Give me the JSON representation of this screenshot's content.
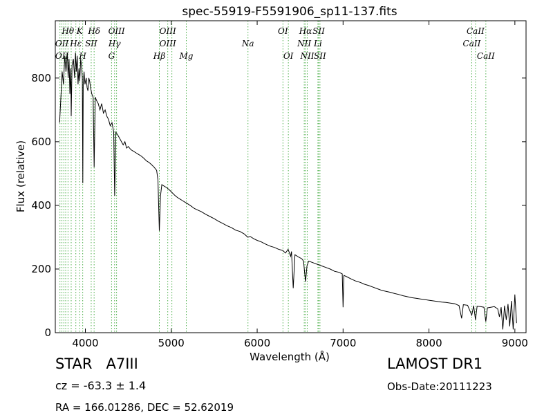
{
  "chart_data": {
    "type": "line",
    "title": "spec-55919-F5591906_sp11-137.fits",
    "xlabel": "Wavelength (Å)",
    "ylabel": "Flux (relative)",
    "xlim": [
      3650,
      9130
    ],
    "ylim": [
      0,
      980
    ],
    "x_ticks": [
      4000,
      5000,
      6000,
      7000,
      8000,
      9000
    ],
    "y_ticks": [
      0,
      200,
      400,
      600,
      800
    ],
    "grid": false,
    "series": [
      {
        "color": "#000000",
        "points": [
          [
            3700,
            660
          ],
          [
            3715,
            740
          ],
          [
            3730,
            820
          ],
          [
            3745,
            780
          ],
          [
            3760,
            870
          ],
          [
            3775,
            820
          ],
          [
            3790,
            880
          ],
          [
            3800,
            800
          ],
          [
            3810,
            860
          ],
          [
            3820,
            750
          ],
          [
            3830,
            830
          ],
          [
            3835,
            680
          ],
          [
            3845,
            840
          ],
          [
            3860,
            860
          ],
          [
            3875,
            800
          ],
          [
            3885,
            880
          ],
          [
            3895,
            820
          ],
          [
            3905,
            870
          ],
          [
            3915,
            780
          ],
          [
            3925,
            830
          ],
          [
            3935,
            790
          ],
          [
            3945,
            860
          ],
          [
            3955,
            840
          ],
          [
            3965,
            800
          ],
          [
            3970,
            470
          ],
          [
            3975,
            780
          ],
          [
            3985,
            820
          ],
          [
            3995,
            780
          ],
          [
            4010,
            800
          ],
          [
            4020,
            770
          ],
          [
            4030,
            760
          ],
          [
            4040,
            800
          ],
          [
            4050,
            790
          ],
          [
            4060,
            770
          ],
          [
            4075,
            750
          ],
          [
            4090,
            740
          ],
          [
            4102,
            520
          ],
          [
            4115,
            740
          ],
          [
            4130,
            730
          ],
          [
            4150,
            720
          ],
          [
            4170,
            700
          ],
          [
            4190,
            720
          ],
          [
            4210,
            690
          ],
          [
            4230,
            700
          ],
          [
            4250,
            680
          ],
          [
            4270,
            670
          ],
          [
            4290,
            650
          ],
          [
            4310,
            660
          ],
          [
            4330,
            630
          ],
          [
            4341,
            430
          ],
          [
            4355,
            630
          ],
          [
            4380,
            620
          ],
          [
            4400,
            610
          ],
          [
            4420,
            600
          ],
          [
            4440,
            590
          ],
          [
            4460,
            600
          ],
          [
            4480,
            580
          ],
          [
            4500,
            585
          ],
          [
            4530,
            575
          ],
          [
            4560,
            570
          ],
          [
            4590,
            565
          ],
          [
            4620,
            560
          ],
          [
            4650,
            555
          ],
          [
            4680,
            548
          ],
          [
            4710,
            540
          ],
          [
            4740,
            535
          ],
          [
            4770,
            528
          ],
          [
            4800,
            520
          ],
          [
            4830,
            510
          ],
          [
            4845,
            480
          ],
          [
            4861,
            320
          ],
          [
            4875,
            430
          ],
          [
            4890,
            465
          ],
          [
            4920,
            460
          ],
          [
            4950,
            455
          ],
          [
            4980,
            448
          ],
          [
            5010,
            440
          ],
          [
            5040,
            432
          ],
          [
            5070,
            425
          ],
          [
            5100,
            420
          ],
          [
            5130,
            415
          ],
          [
            5160,
            410
          ],
          [
            5190,
            405
          ],
          [
            5230,
            398
          ],
          [
            5270,
            390
          ],
          [
            5310,
            385
          ],
          [
            5350,
            380
          ],
          [
            5400,
            372
          ],
          [
            5450,
            365
          ],
          [
            5500,
            358
          ],
          [
            5550,
            350
          ],
          [
            5600,
            343
          ],
          [
            5650,
            336
          ],
          [
            5700,
            330
          ],
          [
            5750,
            322
          ],
          [
            5800,
            318
          ],
          [
            5850,
            310
          ],
          [
            5890,
            300
          ],
          [
            5920,
            302
          ],
          [
            5960,
            295
          ],
          [
            6000,
            290
          ],
          [
            6050,
            285
          ],
          [
            6100,
            278
          ],
          [
            6150,
            272
          ],
          [
            6200,
            268
          ],
          [
            6250,
            262
          ],
          [
            6300,
            258
          ],
          [
            6330,
            250
          ],
          [
            6360,
            262
          ],
          [
            6390,
            240
          ],
          [
            6400,
            255
          ],
          [
            6420,
            140
          ],
          [
            6440,
            245
          ],
          [
            6480,
            238
          ],
          [
            6520,
            232
          ],
          [
            6540,
            225
          ],
          [
            6563,
            160
          ],
          [
            6580,
            210
          ],
          [
            6600,
            225
          ],
          [
            6650,
            220
          ],
          [
            6700,
            215
          ],
          [
            6750,
            210
          ],
          [
            6800,
            205
          ],
          [
            6850,
            200
          ],
          [
            6900,
            193
          ],
          [
            6950,
            190
          ],
          [
            6990,
            185
          ],
          [
            7000,
            80
          ],
          [
            7010,
            180
          ],
          [
            7050,
            175
          ],
          [
            7100,
            168
          ],
          [
            7150,
            162
          ],
          [
            7200,
            158
          ],
          [
            7250,
            152
          ],
          [
            7300,
            148
          ],
          [
            7350,
            143
          ],
          [
            7400,
            138
          ],
          [
            7450,
            133
          ],
          [
            7500,
            130
          ],
          [
            7550,
            127
          ],
          [
            7600,
            123
          ],
          [
            7650,
            120
          ],
          [
            7700,
            116
          ],
          [
            7750,
            113
          ],
          [
            7800,
            110
          ],
          [
            7850,
            108
          ],
          [
            7900,
            106
          ],
          [
            7950,
            104
          ],
          [
            8000,
            102
          ],
          [
            8050,
            100
          ],
          [
            8100,
            98
          ],
          [
            8150,
            96
          ],
          [
            8200,
            95
          ],
          [
            8250,
            93
          ],
          [
            8300,
            91
          ],
          [
            8350,
            85
          ],
          [
            8380,
            45
          ],
          [
            8400,
            88
          ],
          [
            8450,
            86
          ],
          [
            8498,
            55
          ],
          [
            8520,
            85
          ],
          [
            8542,
            40
          ],
          [
            8560,
            83
          ],
          [
            8600,
            82
          ],
          [
            8640,
            80
          ],
          [
            8662,
            35
          ],
          [
            8680,
            78
          ],
          [
            8720,
            80
          ],
          [
            8760,
            82
          ],
          [
            8800,
            75
          ],
          [
            8820,
            50
          ],
          [
            8840,
            80
          ],
          [
            8860,
            10
          ],
          [
            8880,
            85
          ],
          [
            8900,
            40
          ],
          [
            8920,
            90
          ],
          [
            8940,
            20
          ],
          [
            8960,
            100
          ],
          [
            8980,
            10
          ],
          [
            9000,
            120
          ],
          [
            9020,
            30
          ]
        ]
      }
    ],
    "annotations": [
      {
        "text": "Hθ",
        "x": 3797,
        "row": 0,
        "color": "#000000"
      },
      {
        "text": "K",
        "x": 3934,
        "row": 0,
        "color": "#000000"
      },
      {
        "text": "Hδ",
        "x": 4102,
        "row": 0,
        "color": "#000000"
      },
      {
        "text": "OIII",
        "x": 4363,
        "row": 0,
        "color": "#000000"
      },
      {
        "text": "OIII",
        "x": 4959,
        "row": 0,
        "color": "#000000"
      },
      {
        "text": "OI",
        "x": 6300,
        "row": 0,
        "color": "#000000"
      },
      {
        "text": "Hα",
        "x": 6563,
        "row": 0,
        "color": "#000000"
      },
      {
        "text": "SII",
        "x": 6716,
        "row": 0,
        "color": "#000000"
      },
      {
        "text": "CaII",
        "x": 8542,
        "row": 0,
        "color": "#000000"
      },
      {
        "text": "OII",
        "x": 3727,
        "row": 1,
        "color": "#000000"
      },
      {
        "text": "Hε",
        "x": 3889,
        "row": 1,
        "color": "#000000"
      },
      {
        "text": "SII",
        "x": 4068,
        "row": 1,
        "color": "#000000"
      },
      {
        "text": "Hγ",
        "x": 4340,
        "row": 1,
        "color": "#000000"
      },
      {
        "text": "OIII",
        "x": 4959,
        "row": 1,
        "color": "#000000"
      },
      {
        "text": "NII",
        "x": 6548,
        "row": 1,
        "color": "#000000"
      },
      {
        "text": "Li",
        "x": 6707,
        "row": 1,
        "color": "#000000"
      },
      {
        "text": "Na",
        "x": 5893,
        "row": 1,
        "color": "#000000"
      },
      {
        "text": "CaII",
        "x": 8498,
        "row": 1,
        "color": "#000000"
      },
      {
        "text": "OII",
        "x": 3727,
        "row": 2,
        "color": "#000000"
      },
      {
        "text": "H",
        "x": 3969,
        "row": 2,
        "color": "#000000"
      },
      {
        "text": "G",
        "x": 4305,
        "row": 2,
        "color": "#000000"
      },
      {
        "text": "Hβ",
        "x": 4861,
        "row": 2,
        "color": "#000000"
      },
      {
        "text": "Mg",
        "x": 5175,
        "row": 2,
        "color": "#000000"
      },
      {
        "text": "OI",
        "x": 6363,
        "row": 2,
        "color": "#000000"
      },
      {
        "text": "NII",
        "x": 6583,
        "row": 2,
        "color": "#000000"
      },
      {
        "text": "SII",
        "x": 6731,
        "row": 2,
        "color": "#000000"
      },
      {
        "text": "CaII",
        "x": 8662,
        "row": 2,
        "color": "#000000"
      }
    ],
    "line_markers": {
      "color": "#4daf4a",
      "x": [
        3704,
        3727,
        3750,
        3771,
        3798,
        3835,
        3889,
        3934,
        3969,
        4102,
        4068,
        4305,
        4340,
        4363,
        4861,
        4959,
        5007,
        5175,
        5893,
        6300,
        6363,
        6548,
        6563,
        6583,
        6707,
        6716,
        6731,
        8498,
        8542,
        8662
      ]
    }
  },
  "info": {
    "object_class": "STAR   A7III",
    "redshift": "cz = -63.3 ± 1.4",
    "coords": "RA = 166.01286, DEC = 52.62019",
    "survey": "LAMOST DR1",
    "obs_date": "Obs-Date:20111223"
  }
}
